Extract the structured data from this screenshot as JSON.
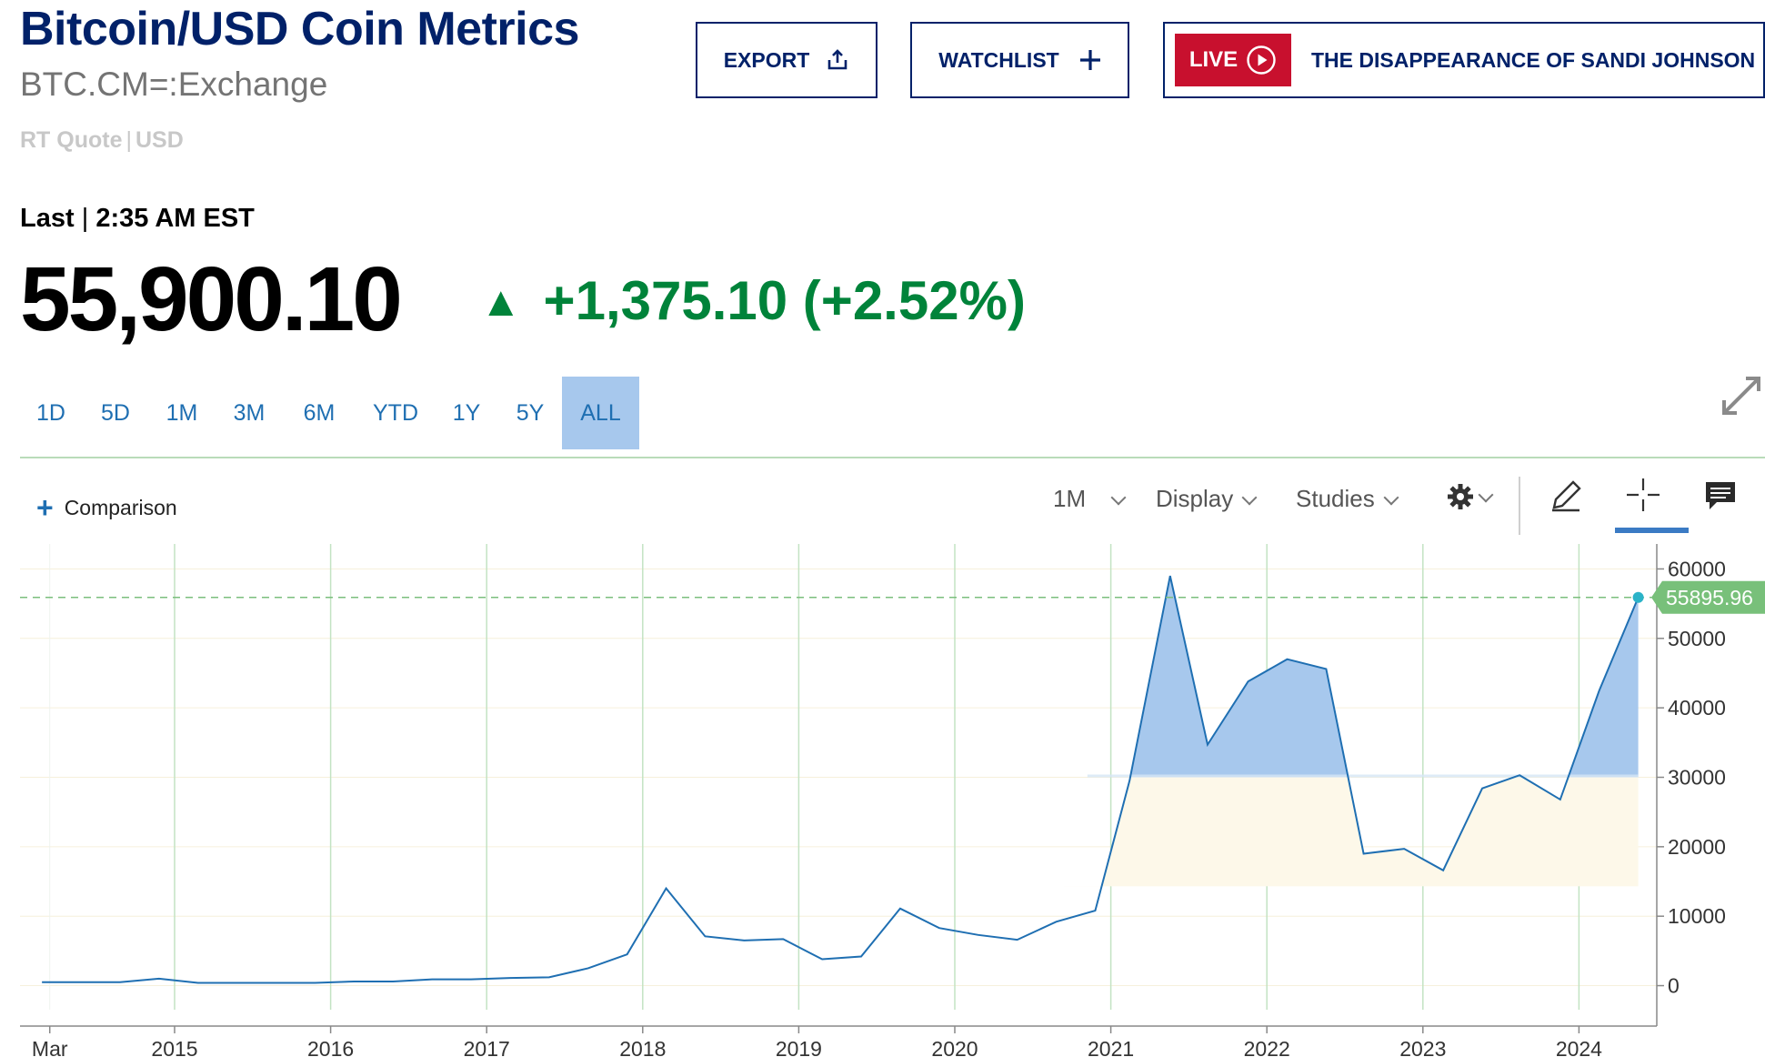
{
  "header": {
    "title": "Bitcoin/USD Coin Metrics",
    "symbol": "BTC.CM=:Exchange",
    "quote_type": "RT Quote",
    "quote_sep": "|",
    "currency": "USD"
  },
  "actions": {
    "export_label": "EXPORT",
    "watchlist_label": "WATCHLIST",
    "live_badge": "LIVE",
    "live_title": "THE DISAPPEARANCE OF SANDI JOHNSON"
  },
  "quote": {
    "last_label": "Last",
    "last_sep": "|",
    "time": "2:35 AM EST",
    "price": "55,900.10",
    "change": "+1,375.10 (+2.52%)",
    "direction": "up",
    "up_color": "#00833a"
  },
  "ranges": [
    {
      "label": "1D",
      "active": false
    },
    {
      "label": "5D",
      "active": false
    },
    {
      "label": "1M",
      "active": false
    },
    {
      "label": "3M",
      "active": false
    },
    {
      "label": "6M",
      "active": false
    },
    {
      "label": "YTD",
      "active": false
    },
    {
      "label": "1Y",
      "active": false
    },
    {
      "label": "5Y",
      "active": false
    },
    {
      "label": "ALL",
      "active": true
    }
  ],
  "toolbar": {
    "comparison_label": "Comparison",
    "interval_label": "1M",
    "display_label": "Display",
    "studies_label": "Studies"
  },
  "chart_data": {
    "type": "area",
    "x_ticks": [
      "Mar",
      "2015",
      "2016",
      "2017",
      "2018",
      "2019",
      "2020",
      "2021",
      "2022",
      "2023",
      "2024"
    ],
    "y_ticks": [
      0,
      10000,
      20000,
      30000,
      40000,
      50000,
      60000
    ],
    "ylim": [
      -1500,
      61500
    ],
    "last_value_label": "55895.96",
    "last_value": 55895.96,
    "baseline": 30000,
    "line_color": "#1f6fb2",
    "above_fill": "#a7c8ed",
    "below_fill": "#fdf8e9",
    "label_color": "#78c07a",
    "series": [
      {
        "x": [
          2014.15,
          2014.4,
          2014.65,
          2014.9,
          2015.15,
          2015.4,
          2015.65,
          2015.9,
          2016.15,
          2016.4,
          2016.65,
          2016.9,
          2017.15,
          2017.4,
          2017.65,
          2017.9,
          2018.15,
          2018.4,
          2018.65,
          2018.9,
          2019.15,
          2019.4,
          2019.65,
          2019.9,
          2020.15,
          2020.4,
          2020.65,
          2020.9,
          2021.12,
          2021.38,
          2021.62,
          2021.88,
          2022.13,
          2022.38,
          2022.62,
          2022.88,
          2023.13,
          2023.38,
          2023.62,
          2023.88,
          2024.13,
          2024.38
        ],
        "values": [
          500,
          500,
          500,
          1000,
          400,
          400,
          400,
          400,
          600,
          600,
          900,
          900,
          1100,
          1200,
          2500,
          4500,
          14000,
          7100,
          6500,
          6700,
          3800,
          4200,
          11100,
          8300,
          7300,
          6600,
          9200,
          10800,
          29500,
          59000,
          34700,
          43800,
          47000,
          45600,
          19000,
          19700,
          16600,
          28400,
          30300,
          26800,
          42500,
          55895.96
        ]
      }
    ]
  }
}
